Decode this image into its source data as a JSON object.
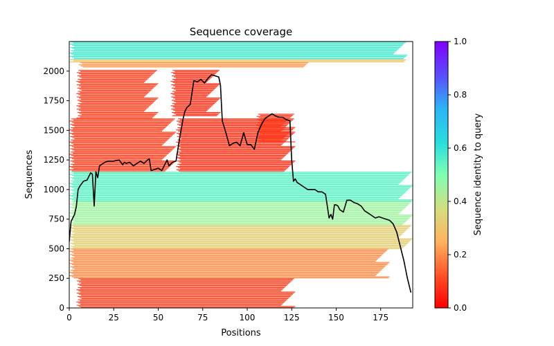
{
  "chart_data": {
    "type": "heatmap",
    "title": "Sequence coverage",
    "xlabel": "Positions",
    "ylabel": "Sequences",
    "xlim": [
      0,
      193
    ],
    "ylim": [
      0,
      2250
    ],
    "x_ticks": [
      0,
      25,
      50,
      75,
      100,
      125,
      150,
      175
    ],
    "y_ticks": [
      0,
      250,
      500,
      750,
      1000,
      1250,
      1500,
      1750,
      2000
    ],
    "colorbar": {
      "label": "Sequence identity to query",
      "range": [
        0.0,
        1.0
      ],
      "ticks": [
        "0.0",
        "0.2",
        "0.4",
        "0.6",
        "0.8",
        "1.0"
      ],
      "colormap": "rainbow_r"
    },
    "coverage_blocks": [
      {
        "seq_from": 2100,
        "seq_to": 2250,
        "pos_from": 0,
        "pos_to": 190,
        "identity": 0.58
      },
      {
        "seq_from": 2075,
        "seq_to": 2100,
        "pos_from": 0,
        "pos_to": 190,
        "identity": 0.3
      },
      {
        "seq_from": 2035,
        "seq_to": 2075,
        "pos_from": 5,
        "pos_to": 135,
        "identity": 0.22
      },
      {
        "seq_from": 1600,
        "seq_to": 2010,
        "pos_from": 4,
        "pos_to": 50,
        "identity": 0.1
      },
      {
        "seq_from": 1620,
        "seq_to": 2010,
        "pos_from": 57,
        "pos_to": 85,
        "identity": 0.08
      },
      {
        "seq_from": 1150,
        "seq_to": 1600,
        "pos_from": 60,
        "pos_to": 127,
        "identity": 0.08
      },
      {
        "seq_from": 1400,
        "seq_to": 1640,
        "pos_from": 105,
        "pos_to": 127,
        "identity": 0.09
      },
      {
        "seq_from": 1150,
        "seq_to": 1600,
        "pos_from": 0,
        "pos_to": 60,
        "identity": 0.1
      },
      {
        "seq_from": 900,
        "seq_to": 1150,
        "pos_from": 0,
        "pos_to": 193,
        "identity": 0.55
      },
      {
        "seq_from": 700,
        "seq_to": 900,
        "pos_from": 0,
        "pos_to": 193,
        "identity": 0.45
      },
      {
        "seq_from": 500,
        "seq_to": 700,
        "pos_from": 0,
        "pos_to": 193,
        "identity": 0.33
      },
      {
        "seq_from": 250,
        "seq_to": 500,
        "pos_from": 0,
        "pos_to": 180,
        "identity": 0.2
      },
      {
        "seq_from": 0,
        "seq_to": 250,
        "pos_from": 4,
        "pos_to": 127,
        "identity": 0.1
      }
    ],
    "series": [
      {
        "name": "coverage",
        "color": "#000000",
        "x": [
          0,
          1,
          2,
          3,
          4,
          5,
          6,
          7,
          8,
          10,
          12,
          13,
          14,
          15,
          16,
          17,
          18,
          20,
          22,
          25,
          28,
          30,
          31,
          32,
          34,
          36,
          38,
          40,
          42,
          44,
          45,
          46,
          48,
          50,
          52,
          54,
          55,
          56,
          58,
          60,
          62,
          64,
          65,
          66,
          68,
          70,
          72,
          74,
          76,
          78,
          80,
          82,
          84,
          85,
          86,
          88,
          90,
          92,
          94,
          96,
          98,
          100,
          102,
          104,
          106,
          108,
          110,
          112,
          114,
          116,
          118,
          120,
          122,
          124,
          125,
          126,
          127,
          128,
          130,
          132,
          134,
          136,
          138,
          140,
          142,
          144,
          146,
          147,
          148,
          149,
          150,
          151,
          152,
          154,
          156,
          158,
          160,
          162,
          164,
          166,
          168,
          170,
          172,
          174,
          176,
          178,
          180,
          182,
          184,
          186,
          188,
          190,
          192
        ],
        "values": [
          560,
          730,
          760,
          790,
          860,
          1000,
          1030,
          1050,
          1070,
          1080,
          1140,
          1130,
          860,
          1150,
          1100,
          1200,
          1210,
          1230,
          1240,
          1240,
          1250,
          1210,
          1230,
          1220,
          1230,
          1200,
          1220,
          1240,
          1220,
          1250,
          1260,
          1160,
          1170,
          1180,
          1160,
          1220,
          1250,
          1200,
          1230,
          1240,
          1430,
          1600,
          1660,
          1690,
          1720,
          1920,
          1910,
          1930,
          1900,
          1940,
          1970,
          1960,
          1950,
          1880,
          1580,
          1480,
          1370,
          1390,
          1400,
          1370,
          1480,
          1380,
          1380,
          1340,
          1480,
          1550,
          1600,
          1620,
          1640,
          1620,
          1610,
          1610,
          1590,
          1580,
          1250,
          1070,
          1090,
          1060,
          1040,
          1020,
          1000,
          1000,
          1000,
          980,
          980,
          960,
          760,
          790,
          750,
          870,
          870,
          860,
          830,
          810,
          910,
          910,
          890,
          880,
          860,
          820,
          800,
          780,
          760,
          770,
          760,
          750,
          740,
          710,
          640,
          520,
          400,
          250,
          130
        ]
      }
    ]
  }
}
